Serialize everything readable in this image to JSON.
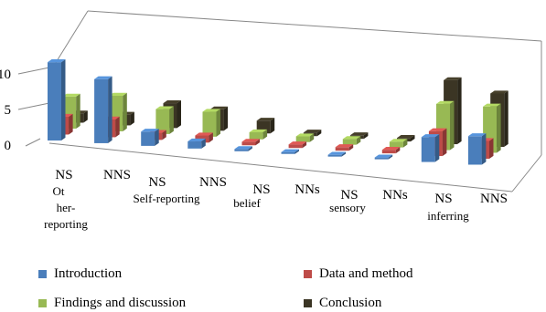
{
  "chart_data": {
    "type": "bar",
    "subtype": "3d-clustered-column",
    "categories": [
      "NS",
      "NNS",
      "NS",
      "NNS",
      "NS",
      "NNs",
      "NS",
      "NNs",
      "NS",
      "NNS"
    ],
    "sublabels": [
      "Ot her-reporting",
      "",
      "Self-reporting",
      "",
      "belief",
      "",
      "sensory",
      "",
      "inferring",
      ""
    ],
    "series": [
      {
        "name": "Introduction",
        "color": "#4a7ebb",
        "values": [
          11,
          9,
          2,
          1,
          0.3,
          0,
          0,
          0,
          3.5,
          4
        ]
      },
      {
        "name": "Data and method",
        "color": "#be4b48",
        "values": [
          2.5,
          2.5,
          1,
          1,
          0.5,
          0.5,
          0.5,
          0.5,
          3.5,
          2.5
        ]
      },
      {
        "name": "Findings and discussion",
        "color": "#98b954",
        "values": [
          4.5,
          5,
          3.5,
          3.5,
          1,
          0.8,
          0.8,
          0.8,
          6.5,
          6.5
        ]
      },
      {
        "name": "Conclusion",
        "color": "#3b3524",
        "values": [
          1.3,
          1.5,
          3.5,
          3,
          1.8,
          0.5,
          0.5,
          0.5,
          9,
          7.5
        ]
      }
    ],
    "yticks": [
      0,
      5,
      10
    ],
    "ylim": [
      0,
      12
    ],
    "legend": "bottom",
    "grid": true
  }
}
